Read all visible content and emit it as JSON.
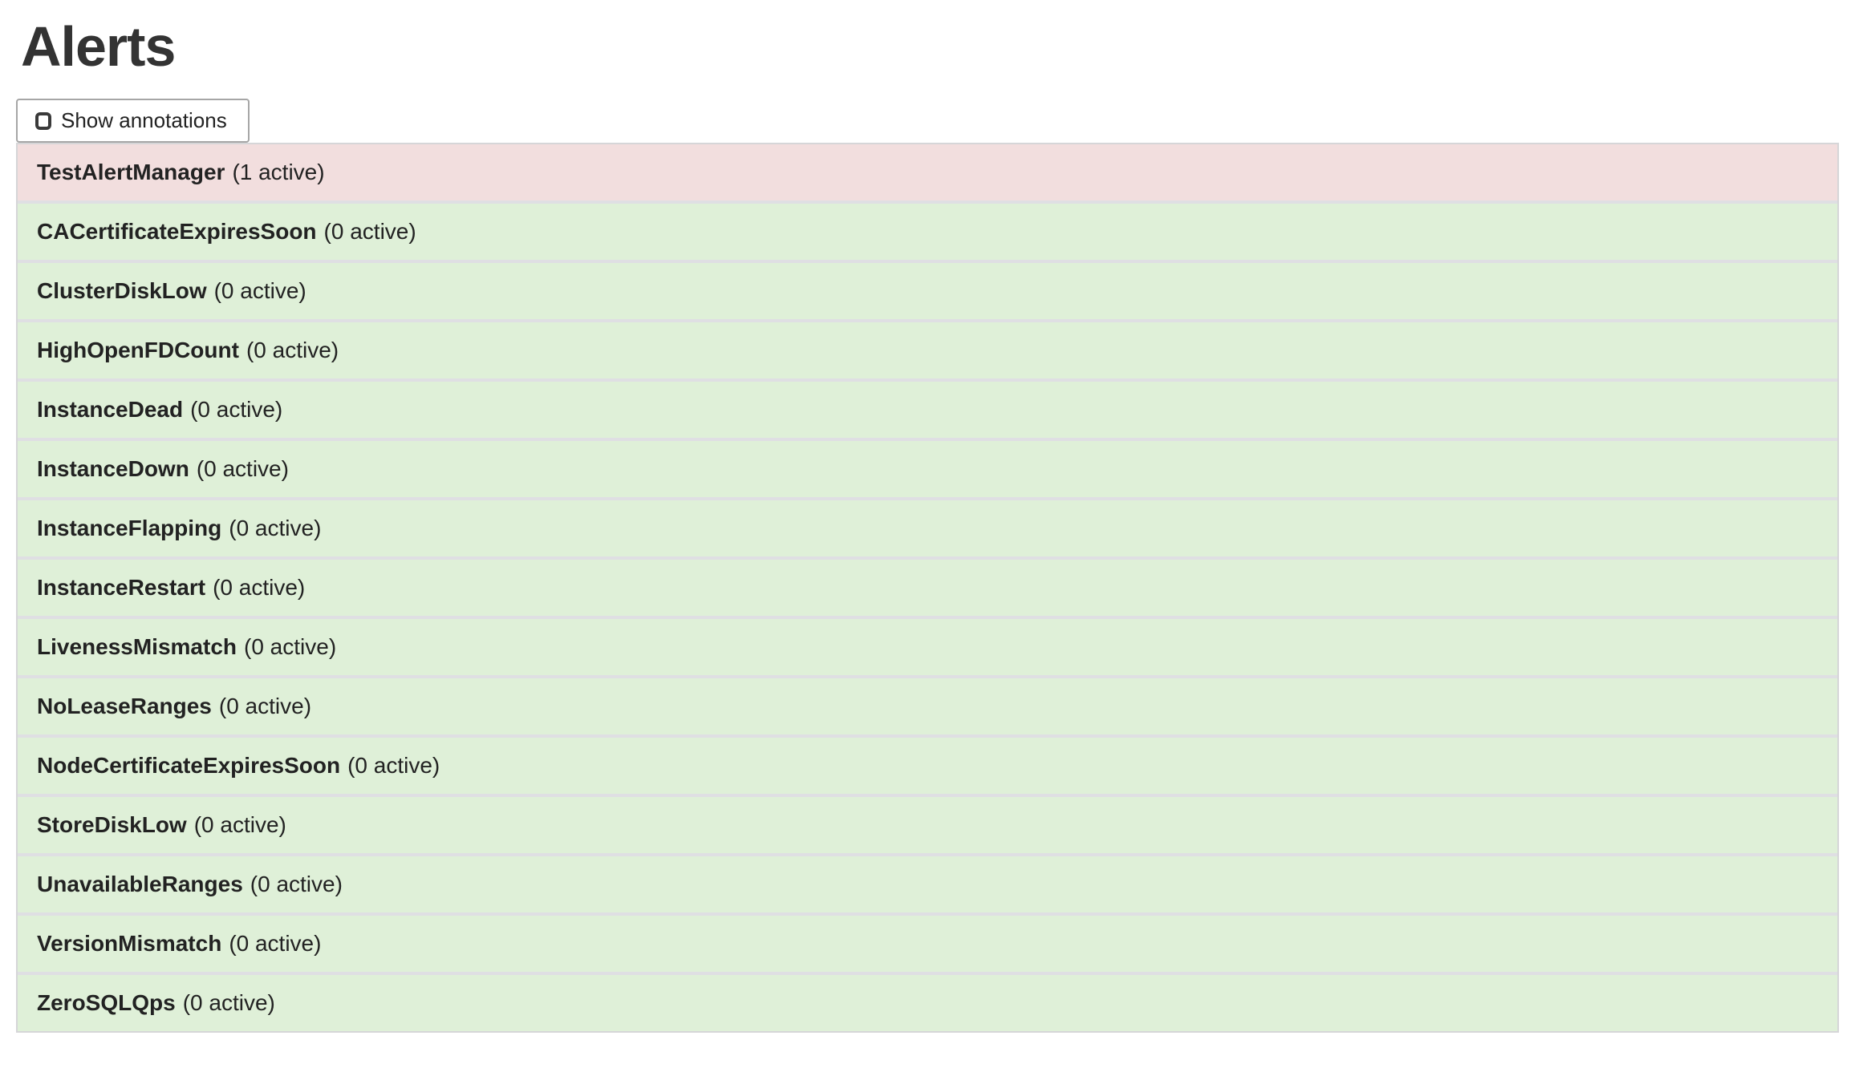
{
  "page": {
    "title": "Alerts"
  },
  "toolbar": {
    "show_annotations": {
      "label": "Show annotations",
      "checked": false
    }
  },
  "alerts": [
    {
      "name": "TestAlertManager",
      "count_text": "(1 active)",
      "active_count": 1,
      "state": "active"
    },
    {
      "name": "CACertificateExpiresSoon",
      "count_text": "(0 active)",
      "active_count": 0,
      "state": "inactive"
    },
    {
      "name": "ClusterDiskLow",
      "count_text": "(0 active)",
      "active_count": 0,
      "state": "inactive"
    },
    {
      "name": "HighOpenFDCount",
      "count_text": "(0 active)",
      "active_count": 0,
      "state": "inactive"
    },
    {
      "name": "InstanceDead",
      "count_text": "(0 active)",
      "active_count": 0,
      "state": "inactive"
    },
    {
      "name": "InstanceDown",
      "count_text": "(0 active)",
      "active_count": 0,
      "state": "inactive"
    },
    {
      "name": "InstanceFlapping",
      "count_text": "(0 active)",
      "active_count": 0,
      "state": "inactive"
    },
    {
      "name": "InstanceRestart",
      "count_text": "(0 active)",
      "active_count": 0,
      "state": "inactive"
    },
    {
      "name": "LivenessMismatch",
      "count_text": "(0 active)",
      "active_count": 0,
      "state": "inactive"
    },
    {
      "name": "NoLeaseRanges",
      "count_text": "(0 active)",
      "active_count": 0,
      "state": "inactive"
    },
    {
      "name": "NodeCertificateExpiresSoon",
      "count_text": "(0 active)",
      "active_count": 0,
      "state": "inactive"
    },
    {
      "name": "StoreDiskLow",
      "count_text": "(0 active)",
      "active_count": 0,
      "state": "inactive"
    },
    {
      "name": "UnavailableRanges",
      "count_text": "(0 active)",
      "active_count": 0,
      "state": "inactive"
    },
    {
      "name": "VersionMismatch",
      "count_text": "(0 active)",
      "active_count": 0,
      "state": "inactive"
    },
    {
      "name": "ZeroSQLQps",
      "count_text": "(0 active)",
      "active_count": 0,
      "state": "inactive"
    }
  ],
  "colors": {
    "active_row_bg": "#f2dede",
    "inactive_row_bg": "#dff0d8",
    "row_separator": "#dfdfe3",
    "list_border": "#d6d6d8",
    "text": "#222222",
    "title_text": "#333333",
    "button_border": "#a6a6a6"
  }
}
